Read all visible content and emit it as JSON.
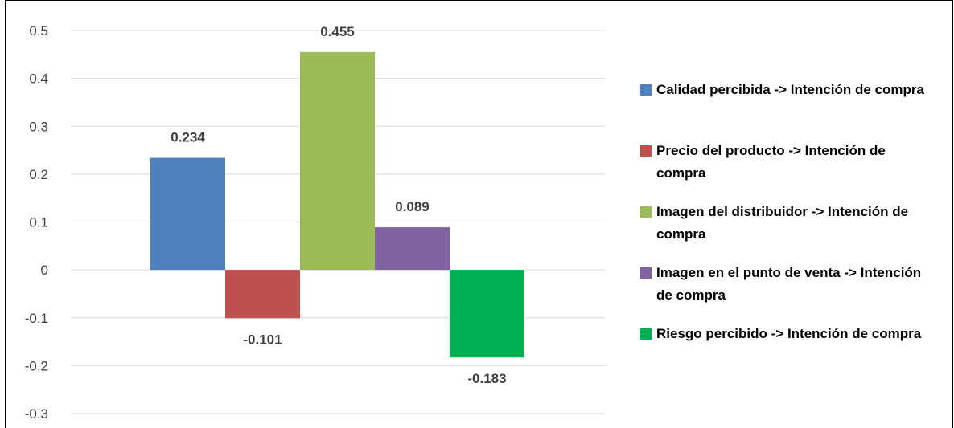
{
  "chart_data": {
    "type": "bar",
    "categories": [
      ""
    ],
    "series": [
      {
        "name": "Calidad percibida -> Intención de compra",
        "value": 0.234,
        "label": "0.234",
        "color": "#4f81bd"
      },
      {
        "name": "Precio del producto -> Intención de compra",
        "value": -0.101,
        "label": "-0.101",
        "color": "#c0504d"
      },
      {
        "name": "Imagen del distribuidor -> Intención de compra",
        "value": 0.455,
        "label": "0.455",
        "color": "#9bbb59"
      },
      {
        "name": "Imagen en el punto de venta -> Intención de compra",
        "value": 0.089,
        "label": "0.089",
        "color": "#8064a2"
      },
      {
        "name": "Riesgo percibido -> Intención de compra",
        "value": -0.183,
        "label": "-0.183",
        "color": "#00b050"
      }
    ],
    "yticks": [
      "0.5",
      "0.4",
      "0.3",
      "0.2",
      "0.1",
      "0",
      "-0.1",
      "-0.2",
      "-0.3"
    ],
    "ylim": [
      -0.3,
      0.5
    ],
    "grid": true,
    "legend_position": "right",
    "title": "",
    "xlabel": "",
    "ylabel": ""
  }
}
